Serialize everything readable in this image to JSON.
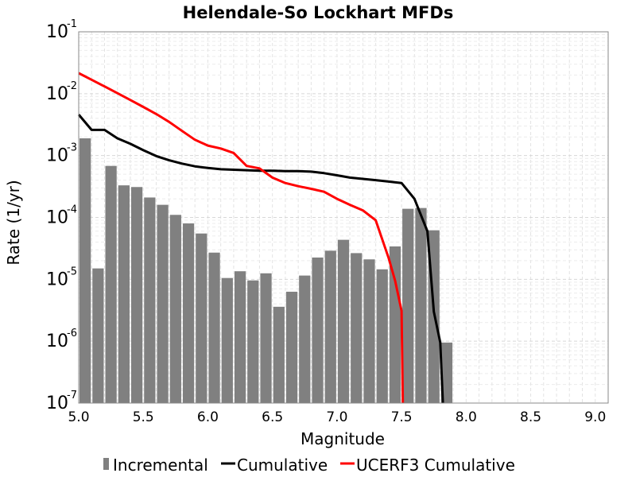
{
  "chart_data": {
    "type": "bar+line",
    "title": "Helendale-So Lockhart MFDs",
    "xlabel": "Magnitude",
    "ylabel": "Rate (1/yr)",
    "xlim": [
      5.0,
      9.1
    ],
    "ylim": [
      1e-07,
      0.1
    ],
    "y_scale": "log",
    "grid": true,
    "legend_placement": "bottom",
    "x_ticks": [
      "5.0",
      "5.5",
      "6.0",
      "6.5",
      "7.0",
      "7.5",
      "8.0",
      "8.5",
      "9.0"
    ],
    "y_ticks": [
      {
        "base": "10",
        "exp": "-7"
      },
      {
        "base": "10",
        "exp": "-6"
      },
      {
        "base": "10",
        "exp": "-5"
      },
      {
        "base": "10",
        "exp": "-4"
      },
      {
        "base": "10",
        "exp": "-3"
      },
      {
        "base": "10",
        "exp": "-2"
      },
      {
        "base": "10",
        "exp": "-1"
      }
    ],
    "series": [
      {
        "name": "Incremental",
        "kind": "bar",
        "color": "#808080",
        "x": [
          5.05,
          5.15,
          5.25,
          5.35,
          5.45,
          5.55,
          5.65,
          5.75,
          5.85,
          5.95,
          6.05,
          6.15,
          6.25,
          6.35,
          6.45,
          6.55,
          6.65,
          6.75,
          6.85,
          6.95,
          7.05,
          7.15,
          7.25,
          7.35,
          7.45,
          7.55,
          7.65,
          7.75,
          7.85
        ],
        "values": [
          0.0019,
          1.5e-05,
          0.00068,
          0.00033,
          0.00031,
          0.00021,
          0.00016,
          0.00011,
          8e-05,
          5.5e-05,
          2.7e-05,
          1.05e-05,
          1.35e-05,
          9.6e-06,
          1.25e-05,
          3.6e-06,
          6.3e-06,
          1.15e-05,
          2.25e-05,
          2.9e-05,
          4.35e-05,
          2.65e-05,
          2.1e-05,
          1.45e-05,
          3.4e-05,
          0.000138,
          0.000142,
          6.2e-05,
          9.5e-07
        ]
      },
      {
        "name": "Cumulative",
        "kind": "line",
        "color": "#000000",
        "x": [
          5.0,
          5.1,
          5.2,
          5.3,
          5.4,
          5.5,
          5.6,
          5.7,
          5.8,
          5.9,
          6.0,
          6.1,
          6.2,
          6.3,
          6.4,
          6.5,
          6.6,
          6.7,
          6.8,
          6.9,
          7.0,
          7.1,
          7.2,
          7.3,
          7.4,
          7.5,
          7.6,
          7.7,
          7.75,
          7.8,
          7.82
        ],
        "values": [
          0.0046,
          0.0026,
          0.0026,
          0.0019,
          0.00155,
          0.00122,
          0.00098,
          0.00084,
          0.00074,
          0.00067,
          0.00063,
          0.0006,
          0.00059,
          0.00058,
          0.00057,
          0.00057,
          0.00056,
          0.00056,
          0.00055,
          0.00052,
          0.00048,
          0.00044,
          0.00042,
          0.0004,
          0.00038,
          0.00036,
          0.0002,
          6e-05,
          3e-06,
          9.5e-07,
          1e-07
        ]
      },
      {
        "name": "UCERF3 Cumulative",
        "kind": "line",
        "color": "#ff0000",
        "x": [
          5.0,
          5.1,
          5.2,
          5.3,
          5.4,
          5.5,
          5.6,
          5.7,
          5.8,
          5.9,
          6.0,
          6.1,
          6.2,
          6.3,
          6.4,
          6.5,
          6.6,
          6.7,
          6.8,
          6.9,
          7.0,
          7.1,
          7.2,
          7.3,
          7.4,
          7.45,
          7.5,
          7.51
        ],
        "values": [
          0.0215,
          0.0168,
          0.0131,
          0.0102,
          0.0079,
          0.0061,
          0.0047,
          0.0035,
          0.0025,
          0.0018,
          0.00145,
          0.0013,
          0.0011,
          0.00068,
          0.00062,
          0.00044,
          0.00036,
          0.00032,
          0.00029,
          0.00026,
          0.0002,
          0.00016,
          0.00013,
          9e-05,
          2.2e-05,
          9.5e-06,
          3.1e-06,
          1e-07
        ]
      }
    ]
  }
}
